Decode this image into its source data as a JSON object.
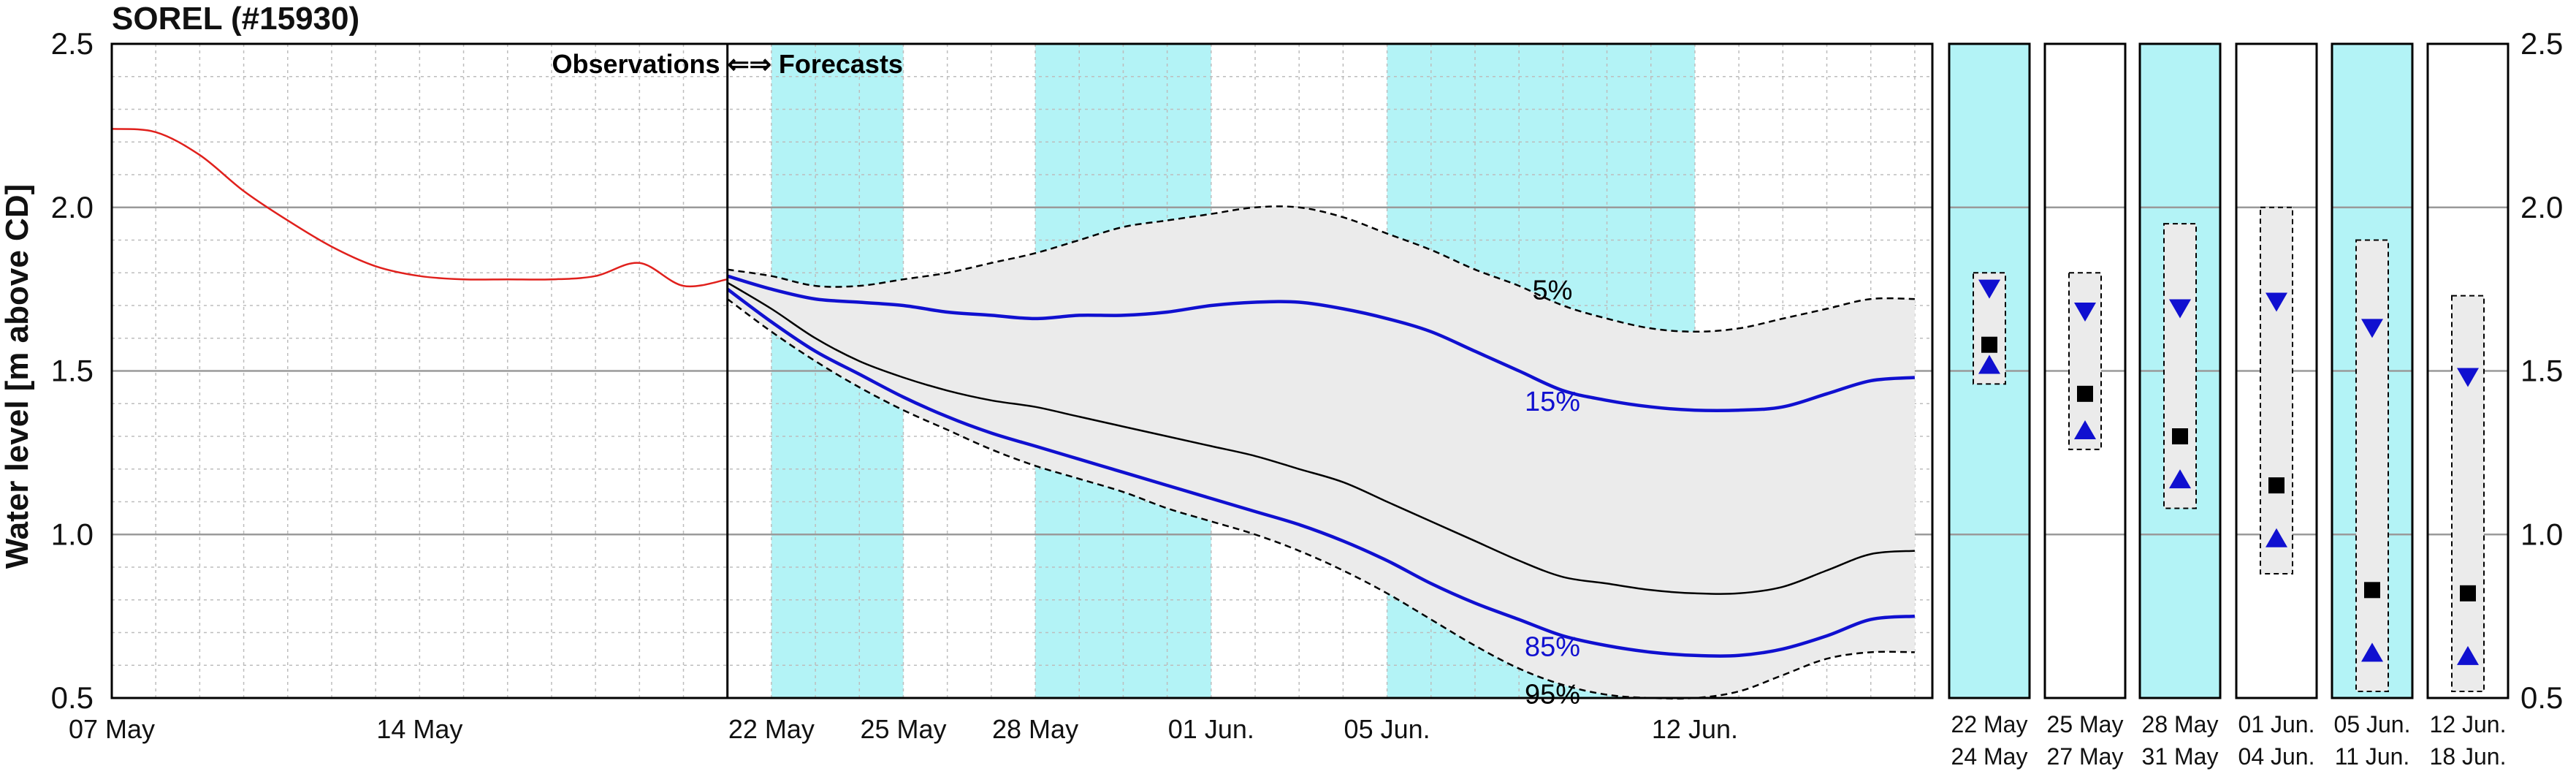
{
  "chart_data": {
    "type": "line",
    "title": "SOREL (#15930)",
    "ylabel": "Water level [m above CD]",
    "ylim": [
      0.5,
      2.5
    ],
    "yticks": [
      "0.5",
      "1.0",
      "1.5",
      "2.0",
      "2.5"
    ],
    "yticks_right": [
      "0.5",
      "1.0",
      "1.5",
      "2.0",
      "2.5"
    ],
    "xlim": [
      "2019-05-07",
      "2019-06-17"
    ],
    "x_ticks": [
      {
        "date": "2019-05-07",
        "label": "07 May"
      },
      {
        "date": "2019-05-14",
        "label": "14 May"
      },
      {
        "date": "2019-05-22",
        "label": "22 May"
      },
      {
        "date": "2019-05-25",
        "label": "25 May"
      },
      {
        "date": "2019-05-28",
        "label": "28 May"
      },
      {
        "date": "2019-06-01",
        "label": "01 Jun."
      },
      {
        "date": "2019-06-05",
        "label": "05 Jun."
      },
      {
        "date": "2019-06-12",
        "label": "12 Jun."
      }
    ],
    "grid": true,
    "section_label": "Observations ⇐⇒ Forecasts",
    "forecast_start": "2019-05-21",
    "highlight_periods": [
      {
        "start": "2019-05-22",
        "end": "2019-05-25"
      },
      {
        "start": "2019-05-28",
        "end": "2019-06-01"
      },
      {
        "start": "2019-06-05",
        "end": "2019-06-12"
      }
    ],
    "highlight_color": "#b3f3f6",
    "observed": {
      "color": "#e0201c",
      "x": [
        "2019-05-07",
        "2019-05-08",
        "2019-05-09",
        "2019-05-10",
        "2019-05-11",
        "2019-05-12",
        "2019-05-13",
        "2019-05-14",
        "2019-05-15",
        "2019-05-16",
        "2019-05-17",
        "2019-05-18",
        "2019-05-19",
        "2019-05-20",
        "2019-05-21"
      ],
      "y": [
        2.24,
        2.23,
        2.16,
        2.05,
        1.96,
        1.88,
        1.82,
        1.79,
        1.78,
        1.78,
        1.78,
        1.79,
        1.83,
        1.76,
        1.78
      ]
    },
    "forecast_x": [
      "2019-05-21",
      "2019-05-22",
      "2019-05-23",
      "2019-05-24",
      "2019-05-25",
      "2019-05-26",
      "2019-05-27",
      "2019-05-28",
      "2019-05-29",
      "2019-05-30",
      "2019-05-31",
      "2019-06-01",
      "2019-06-02",
      "2019-06-03",
      "2019-06-04",
      "2019-06-05",
      "2019-06-06",
      "2019-06-07",
      "2019-06-08",
      "2019-06-09",
      "2019-06-10",
      "2019-06-11",
      "2019-06-12",
      "2019-06-13",
      "2019-06-14",
      "2019-06-15",
      "2019-06-16",
      "2019-06-17"
    ],
    "series": [
      {
        "name": "5%",
        "color": "#000000",
        "style": "dashed",
        "values": [
          1.81,
          1.79,
          1.76,
          1.76,
          1.78,
          1.8,
          1.83,
          1.86,
          1.9,
          1.94,
          1.96,
          1.98,
          2.0,
          2.0,
          1.97,
          1.92,
          1.87,
          1.81,
          1.76,
          1.7,
          1.66,
          1.63,
          1.62,
          1.63,
          1.66,
          1.69,
          1.72,
          1.72
        ]
      },
      {
        "name": "15%",
        "color": "#1010d0",
        "style": "solid",
        "values": [
          1.79,
          1.75,
          1.72,
          1.71,
          1.7,
          1.68,
          1.67,
          1.66,
          1.67,
          1.67,
          1.68,
          1.7,
          1.71,
          1.71,
          1.69,
          1.66,
          1.62,
          1.56,
          1.5,
          1.44,
          1.41,
          1.39,
          1.38,
          1.38,
          1.39,
          1.43,
          1.47,
          1.48
        ]
      },
      {
        "name": "",
        "color": "#000000",
        "style": "thin",
        "values": [
          1.77,
          1.69,
          1.6,
          1.53,
          1.48,
          1.44,
          1.41,
          1.39,
          1.36,
          1.33,
          1.3,
          1.27,
          1.24,
          1.2,
          1.16,
          1.1,
          1.04,
          0.98,
          0.92,
          0.87,
          0.85,
          0.83,
          0.82,
          0.82,
          0.84,
          0.89,
          0.94,
          0.95
        ]
      },
      {
        "name": "85%",
        "color": "#1010d0",
        "style": "solid",
        "values": [
          1.75,
          1.65,
          1.56,
          1.49,
          1.42,
          1.36,
          1.31,
          1.27,
          1.23,
          1.19,
          1.15,
          1.11,
          1.07,
          1.03,
          0.98,
          0.92,
          0.85,
          0.79,
          0.74,
          0.69,
          0.66,
          0.64,
          0.63,
          0.63,
          0.65,
          0.69,
          0.74,
          0.75
        ]
      },
      {
        "name": "95%",
        "color": "#000000",
        "style": "dashed",
        "values": [
          1.72,
          1.62,
          1.53,
          1.45,
          1.38,
          1.32,
          1.26,
          1.21,
          1.17,
          1.13,
          1.08,
          1.04,
          1.0,
          0.95,
          0.89,
          0.82,
          0.74,
          0.66,
          0.59,
          0.54,
          0.51,
          0.5,
          0.5,
          0.52,
          0.57,
          0.62,
          0.64,
          0.64
        ]
      }
    ],
    "band_color": "#ebebeb",
    "summary_panels": [
      {
        "label_top": "22  May",
        "label_bottom": "24  May",
        "highlight": true,
        "max": 1.8,
        "min": 1.46,
        "upper": 1.75,
        "median": 1.58,
        "lower": 1.52
      },
      {
        "label_top": "25  May",
        "label_bottom": "27  May",
        "highlight": false,
        "max": 1.8,
        "min": 1.26,
        "upper": 1.68,
        "median": 1.43,
        "lower": 1.32
      },
      {
        "label_top": "28  May",
        "label_bottom": "31  May",
        "highlight": true,
        "max": 1.95,
        "min": 1.08,
        "upper": 1.69,
        "median": 1.3,
        "lower": 1.17
      },
      {
        "label_top": "01  Jun.",
        "label_bottom": "04  Jun.",
        "highlight": false,
        "max": 2.0,
        "min": 0.88,
        "upper": 1.71,
        "median": 1.15,
        "lower": 0.99
      },
      {
        "label_top": "05  Jun.",
        "label_bottom": "11  Jun.",
        "highlight": true,
        "max": 1.9,
        "min": 0.52,
        "upper": 1.63,
        "median": 0.83,
        "lower": 0.64
      },
      {
        "label_top": "12  Jun.",
        "label_bottom": "18  Jun.",
        "highlight": false,
        "max": 1.73,
        "min": 0.52,
        "upper": 1.48,
        "median": 0.82,
        "lower": 0.63
      }
    ]
  }
}
